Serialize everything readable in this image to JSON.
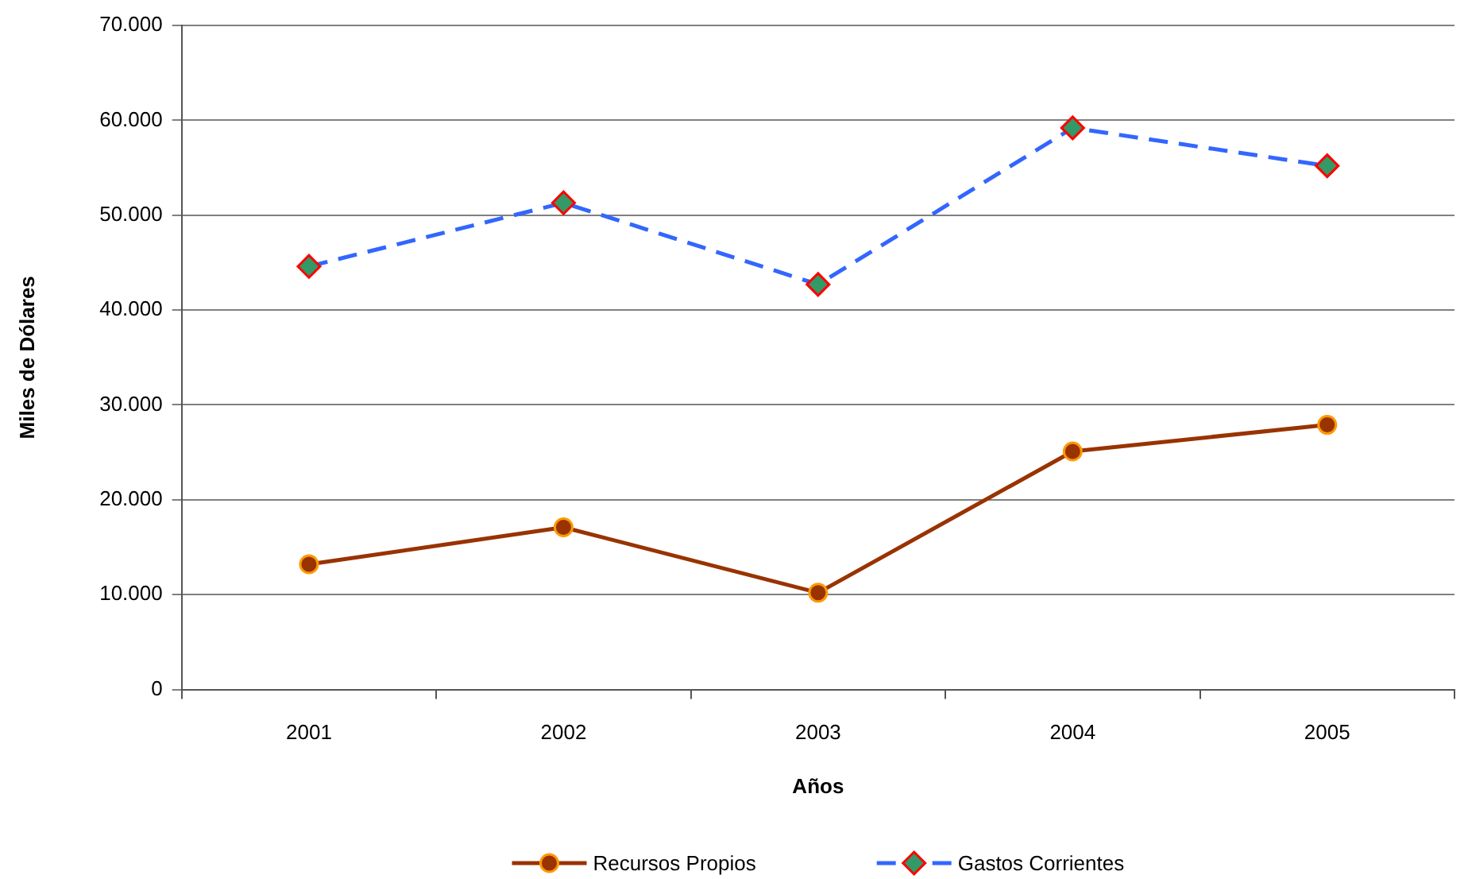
{
  "chart_data": {
    "type": "line",
    "xlabel": "Años",
    "ylabel": "Miles de Dólares",
    "categories": [
      "2001",
      "2002",
      "2003",
      "2004",
      "2005"
    ],
    "series": [
      {
        "name": "Recursos Propios",
        "color": "#993300",
        "values": [
          13200,
          17100,
          10200,
          25100,
          27900
        ],
        "marker": "circle",
        "line_style": "solid"
      },
      {
        "name": "Gastos Corrientes",
        "color": "#3366ff",
        "values": [
          44600,
          51300,
          42700,
          59200,
          55200
        ],
        "marker": "diamond",
        "line_style": "dashed"
      }
    ],
    "ylim": [
      0,
      70000
    ],
    "yticks": [
      0,
      {
        "value": 10000,
        "label": "10.000"
      },
      {
        "value": 20000,
        "label": "20.000"
      },
      {
        "value": 30000,
        "label": "30.000"
      },
      {
        "value": 40000,
        "label": "40.000"
      },
      {
        "value": 50000,
        "label": "50.000"
      },
      {
        "value": 60000,
        "label": "60.000"
      },
      {
        "value": 70000,
        "label": "70.000"
      }
    ],
    "grid": "y",
    "legend": "bottom"
  }
}
